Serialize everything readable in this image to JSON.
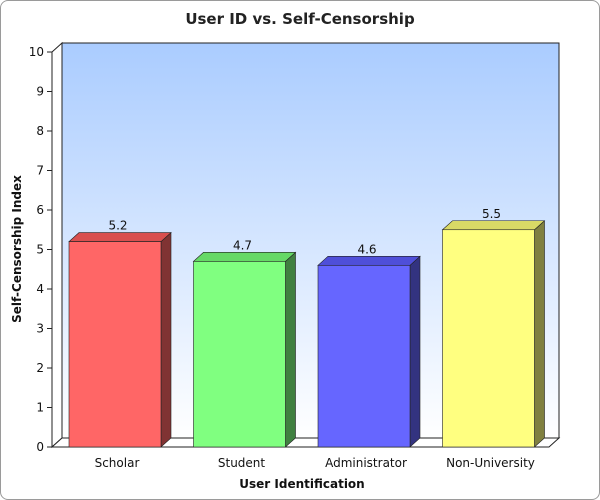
{
  "chart_data": {
    "type": "bar",
    "title": "User ID vs. Self-Censorship",
    "xlabel": "User Identification",
    "ylabel": "Self-Censorship Index",
    "ylim": [
      0,
      10
    ],
    "yticks": [
      "0",
      "1",
      "2",
      "3",
      "4",
      "5",
      "6",
      "7",
      "8",
      "9",
      "10"
    ],
    "categories": [
      "Scholar",
      "Student",
      "Administrator",
      "Non-University"
    ],
    "values": [
      5.2,
      4.7,
      4.6,
      5.5
    ],
    "value_labels": [
      "5.2",
      "4.7",
      "4.6",
      "5.5"
    ],
    "bar_colors": [
      "#ff6666",
      "#80ff80",
      "#6666ff",
      "#ffff80"
    ],
    "bar_side_colors": [
      "#803333",
      "#408040",
      "#333380",
      "#808040"
    ],
    "bar_top_colors": [
      "#d94f4f",
      "#66d966",
      "#4f4fd9",
      "#d9d966"
    ],
    "background_gradient": [
      "#aaccff",
      "#ffffff"
    ],
    "grid": false,
    "legend": "none"
  }
}
